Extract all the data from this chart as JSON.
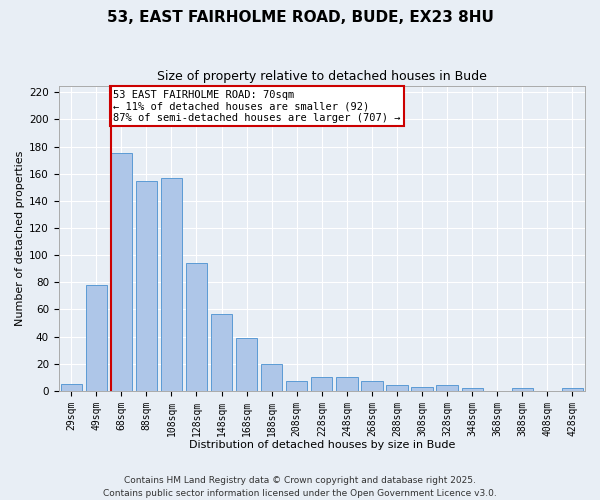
{
  "title_line1": "53, EAST FAIRHOLME ROAD, BUDE, EX23 8HU",
  "title_line2": "Size of property relative to detached houses in Bude",
  "xlabel": "Distribution of detached houses by size in Bude",
  "ylabel": "Number of detached properties",
  "categories": [
    "29sqm",
    "49sqm",
    "68sqm",
    "88sqm",
    "108sqm",
    "128sqm",
    "148sqm",
    "168sqm",
    "188sqm",
    "208sqm",
    "228sqm",
    "248sqm",
    "268sqm",
    "288sqm",
    "308sqm",
    "328sqm",
    "348sqm",
    "368sqm",
    "388sqm",
    "408sqm",
    "428sqm"
  ],
  "values": [
    5,
    78,
    175,
    155,
    157,
    94,
    57,
    39,
    20,
    7,
    10,
    10,
    7,
    4,
    3,
    4,
    2,
    0,
    2,
    0,
    2
  ],
  "bar_color": "#aec6e8",
  "bar_edge_color": "#5b9bd5",
  "annotation_text": "53 EAST FAIRHOLME ROAD: 70sqm\n← 11% of detached houses are smaller (92)\n87% of semi-detached houses are larger (707) →",
  "annotation_box_color": "#ffffff",
  "annotation_box_edge": "#cc0000",
  "red_line_color": "#cc0000",
  "ylim": [
    0,
    225
  ],
  "yticks": [
    0,
    20,
    40,
    60,
    80,
    100,
    120,
    140,
    160,
    180,
    200,
    220
  ],
  "footer_line1": "Contains HM Land Registry data © Crown copyright and database right 2025.",
  "footer_line2": "Contains public sector information licensed under the Open Government Licence v3.0.",
  "bg_color": "#e8eef5",
  "grid_color": "#ffffff",
  "title_fontsize": 11,
  "subtitle_fontsize": 9,
  "axis_label_fontsize": 8,
  "tick_fontsize": 7,
  "footer_fontsize": 6.5
}
